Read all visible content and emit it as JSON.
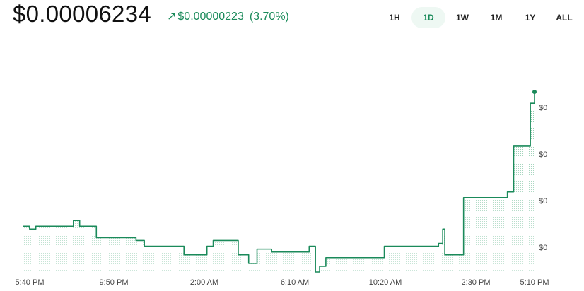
{
  "header": {
    "price": "$0.00006234",
    "change_arrow": "↗",
    "change_value": "$0.00000223",
    "change_pct": "(3.70%)",
    "accent_color": "#1a8a5a"
  },
  "ranges": {
    "items": [
      "1H",
      "1D",
      "1W",
      "1M",
      "1Y",
      "ALL"
    ],
    "selected": "1D"
  },
  "chart_data": {
    "type": "line",
    "style": "step",
    "fill": "dotted area",
    "grid": false,
    "y_tick_labels": [
      "$0",
      "$0",
      "$0",
      "$0"
    ],
    "x_tick_labels": [
      "5:40 PM",
      "9:50 PM",
      "2:00 AM",
      "6:10 AM",
      "10:20 AM",
      "2:30 PM",
      "5:10 PM"
    ],
    "series": [
      {
        "color": "#1a8a5a",
        "points": [
          [
            0.0,
            5.76e-05
          ],
          [
            0.3,
            5.75e-05
          ],
          [
            0.6,
            5.76e-05
          ],
          [
            2.4,
            5.78e-05
          ],
          [
            2.7,
            5.76e-05
          ],
          [
            3.5,
            5.72e-05
          ],
          [
            5.4,
            5.71e-05
          ],
          [
            5.8,
            5.69e-05
          ],
          [
            7.7,
            5.66e-05
          ],
          [
            8.8,
            5.69e-05
          ],
          [
            9.1,
            5.71e-05
          ],
          [
            10.3,
            5.7e-05
          ],
          [
            10.3,
            5.66e-05
          ],
          [
            10.8,
            5.63e-05
          ],
          [
            11.2,
            5.68e-05
          ],
          [
            11.9,
            5.67e-05
          ],
          [
            13.7,
            5.69e-05
          ],
          [
            14.0,
            5.6e-05
          ],
          [
            14.2,
            5.62e-05
          ],
          [
            14.5,
            5.65e-05
          ],
          [
            17.3,
            5.69e-05
          ],
          [
            19.9,
            5.7e-05
          ],
          [
            20.1,
            5.75e-05
          ],
          [
            20.2,
            5.66e-05
          ],
          [
            21.1,
            5.86e-05
          ],
          [
            23.2,
            5.88e-05
          ],
          [
            23.5,
            6.04e-05
          ],
          [
            24.3,
            6.19e-05
          ],
          [
            24.5,
            6.23e-05
          ]
        ]
      }
    ],
    "last_point_marker": true
  }
}
